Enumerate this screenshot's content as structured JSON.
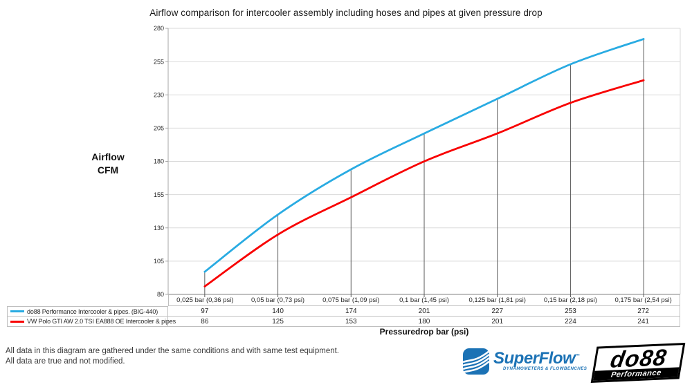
{
  "chart_data": {
    "type": "line",
    "title": "Airflow comparison for intercooler assembly including hoses and pipes at given pressure drop",
    "ylabel_lines": [
      "Airflow",
      "CFM"
    ],
    "xlabel": "Pressuredrop bar (psi)",
    "ylim": [
      80,
      280
    ],
    "yticks": [
      80,
      105,
      130,
      155,
      180,
      205,
      230,
      255,
      280
    ],
    "grid": "horizontal",
    "drop_lines": true,
    "legend_position": "bottom-left-table",
    "categories": [
      "0,025 bar (0,36 psi)",
      "0,05 bar (0,73 psi)",
      "0,075 bar (1,09 psi)",
      "0,1 bar (1,45 psi)",
      "0,125 bar (1,81 psi)",
      "0,15 bar (2,18 psi)",
      "0,175 bar (2,54 psi)"
    ],
    "series": [
      {
        "name": "do88 Performance Intercooler & pipes. (BIG-440)",
        "color": "#29ABE2",
        "values": [
          97,
          140,
          174,
          201,
          227,
          253,
          272
        ]
      },
      {
        "name": "VW Polo GTI AW 2.0 TSI EA888 OE Intercooler & pipes",
        "color": "#F80000",
        "values": [
          86,
          125,
          153,
          180,
          201,
          224,
          241
        ]
      }
    ]
  },
  "footer": {
    "line1": "All data in this diagram are gathered under the same conditions and with same test equipment.",
    "line2": "All data are true and not modified."
  },
  "logos": {
    "superflow": {
      "name": "SuperFlow",
      "tm": "™",
      "tagline": "DYNAMOMETERS & FLOWBENCHES",
      "color": "#1B72B5"
    },
    "do88": {
      "name": "do88",
      "tagline": "Performance"
    }
  },
  "colors": {
    "gridline": "#D9D9D9",
    "axis_left": "#A6A6A6",
    "axis_bottom": "#808080",
    "drop_line": "#595959",
    "table_border": "#BFBFBF",
    "text": "#262626"
  }
}
